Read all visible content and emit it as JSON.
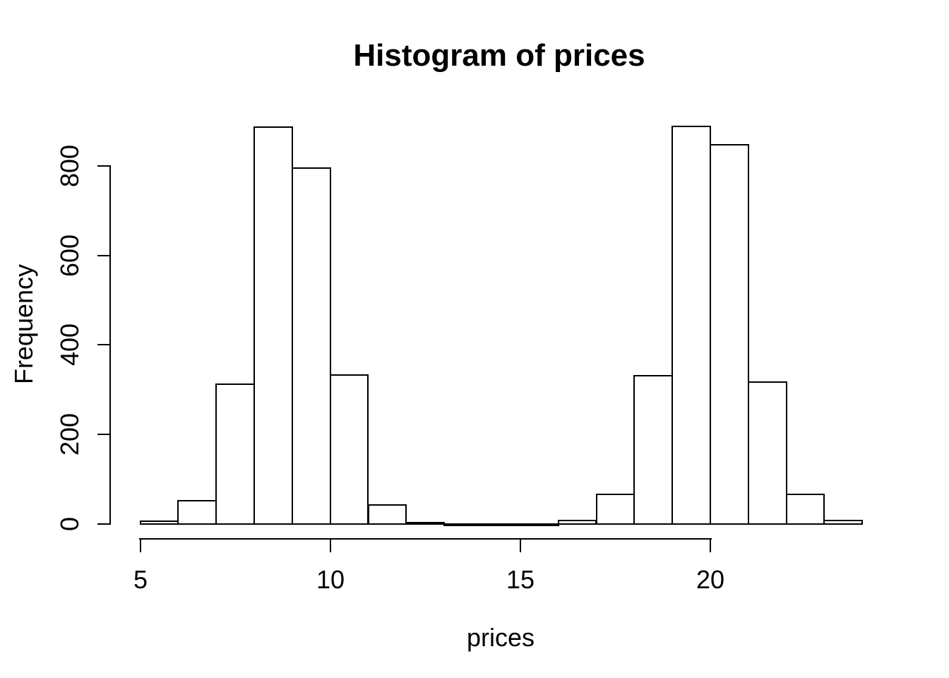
{
  "chart_data": {
    "type": "bar",
    "subtype": "histogram",
    "title": "Histogram of prices",
    "xlabel": "prices",
    "ylabel": "Frequency",
    "breaks": [
      5,
      6,
      7,
      8,
      9,
      10,
      11,
      12,
      13,
      14,
      15,
      16,
      17,
      18,
      19,
      20,
      21,
      22,
      23,
      24
    ],
    "counts": [
      7,
      52,
      313,
      887,
      796,
      333,
      42,
      3,
      0,
      0,
      0,
      8,
      66,
      331,
      889,
      847,
      317,
      66,
      8
    ],
    "x_ticks": [
      5,
      10,
      15,
      20
    ],
    "y_ticks": [
      0,
      200,
      400,
      600,
      800
    ],
    "xlim": [
      5,
      24
    ],
    "ylim": [
      0,
      890
    ],
    "grid": false,
    "legend": false,
    "bar_fill": "#ffffff",
    "bar_stroke": "#000000",
    "background": "#ffffff",
    "text_color": "#000000"
  }
}
